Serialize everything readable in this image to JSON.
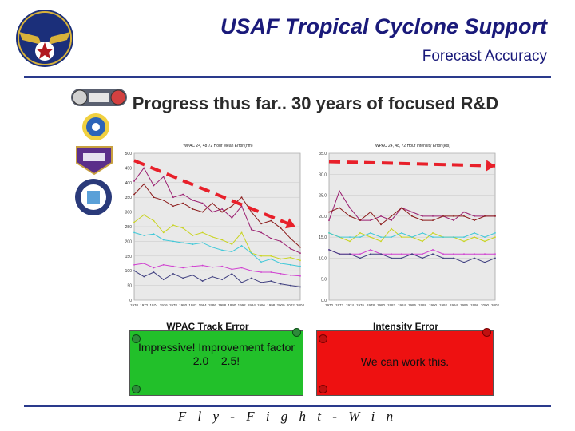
{
  "header": {
    "title": "USAF Tropical Cyclone Support",
    "subtitle": "Forecast Accuracy"
  },
  "panel": {
    "heading": "Progress thus far.. 30 years of focused R&D"
  },
  "notes": {
    "track": "Impressive! Improvement factor 2.0 – 2.5!",
    "intensity": "We can work this."
  },
  "footer": {
    "text": "F l y - F i g h t - W i n"
  },
  "colors": {
    "brand": "#1a1a7a",
    "rule": "#2a3a8c",
    "trend_arrow": "#e8202a",
    "track_note_bg": "#22c02a",
    "intensity_note_bg": "#ee1111"
  },
  "icons": [
    "usaf-wings-icon",
    "partner-seal-1-icon",
    "partner-seal-2-icon",
    "partner-seal-3-icon",
    "partner-seal-4-icon"
  ],
  "chart_data": [
    {
      "type": "line",
      "title": "WPAC 24, 48 72 Hour Mean Error (nm)",
      "caption": "WPAC Track Error",
      "ylim": [
        0,
        500
      ],
      "y_ticks": [
        "0",
        "50",
        "100",
        "150",
        "200",
        "250",
        "300",
        "350",
        "400",
        "450",
        "500"
      ],
      "x_ticks": [
        "1970",
        "1972",
        "1974",
        "1976",
        "1978",
        "1980",
        "1982",
        "1984",
        "1986",
        "1988",
        "1990",
        "1992",
        "1994",
        "1996",
        "1998",
        "2000",
        "2002",
        "2004"
      ],
      "x": [
        1970,
        1972,
        1974,
        1976,
        1978,
        1980,
        1982,
        1984,
        1986,
        1988,
        1990,
        1992,
        1994,
        1996,
        1998,
        2000,
        2002,
        2004
      ],
      "series": [
        {
          "values": [
            405,
            450,
            390,
            420,
            350,
            360,
            340,
            330,
            300,
            310,
            280,
            320,
            240,
            230,
            210,
            200,
            175,
            160
          ],
          "color": "#9a1e70"
        },
        {
          "values": [
            360,
            395,
            350,
            340,
            320,
            330,
            310,
            300,
            330,
            300,
            320,
            350,
            300,
            260,
            270,
            245,
            210,
            180
          ],
          "color": "#8b1a1a"
        },
        {
          "values": [
            265,
            290,
            270,
            230,
            255,
            245,
            220,
            230,
            215,
            205,
            190,
            230,
            160,
            150,
            150,
            140,
            145,
            135
          ],
          "color": "#c9d420"
        },
        {
          "values": [
            230,
            220,
            225,
            205,
            200,
            195,
            190,
            195,
            180,
            170,
            165,
            185,
            160,
            130,
            140,
            125,
            120,
            115
          ],
          "color": "#40c8d8"
        },
        {
          "values": [
            120,
            125,
            110,
            120,
            115,
            110,
            115,
            118,
            112,
            115,
            105,
            110,
            100,
            95,
            95,
            90,
            85,
            82
          ],
          "color": "#d040d0"
        },
        {
          "values": [
            100,
            80,
            95,
            70,
            90,
            75,
            85,
            65,
            80,
            70,
            90,
            60,
            75,
            60,
            65,
            55,
            50,
            45
          ],
          "color": "#404080"
        }
      ],
      "trend": {
        "from": [
          1970,
          475
        ],
        "to": [
          2003,
          250
        ]
      }
    },
    {
      "type": "line",
      "title": "WPAC 24, 48, 72 Hour Intensity Error (kts)",
      "caption": "Intensity Error",
      "ylim": [
        0,
        35
      ],
      "y_ticks": [
        "0.0",
        "5.0",
        "10.0",
        "15.0",
        "20.0",
        "25.0",
        "30.0",
        "35.0"
      ],
      "x_ticks": [
        "1970",
        "1972",
        "1974",
        "1976",
        "1978",
        "1980",
        "1982",
        "1984",
        "1986",
        "1988",
        "1990",
        "1992",
        "1994",
        "1996",
        "1998",
        "2000",
        "2002"
      ],
      "x": [
        1970,
        1972,
        1974,
        1976,
        1978,
        1980,
        1982,
        1984,
        1986,
        1988,
        1990,
        1992,
        1994,
        1996,
        1998,
        2000,
        2002
      ],
      "series": [
        {
          "values": [
            19,
            26,
            22,
            19,
            19,
            20,
            19,
            22,
            21,
            20,
            20,
            20,
            19,
            21,
            20,
            20,
            20
          ],
          "color": "#9a1e70"
        },
        {
          "values": [
            21,
            22,
            20,
            19,
            21,
            18,
            20,
            22,
            20,
            19,
            19,
            20,
            20,
            20,
            19,
            20,
            20
          ],
          "color": "#8b1a1a"
        },
        {
          "values": [
            16,
            15,
            14,
            16,
            15,
            14,
            17,
            15,
            15,
            14,
            16,
            15,
            15,
            14,
            15,
            14,
            15
          ],
          "color": "#c9d420"
        },
        {
          "values": [
            16,
            15,
            15,
            15,
            16,
            15,
            15,
            16,
            15,
            16,
            15,
            15,
            15,
            15,
            16,
            15,
            16
          ],
          "color": "#40c8d8"
        },
        {
          "values": [
            12,
            11,
            11,
            11,
            12,
            11,
            11,
            11,
            11,
            11,
            12,
            11,
            11,
            11,
            11,
            11,
            11
          ],
          "color": "#d040d0"
        },
        {
          "values": [
            12,
            11,
            11,
            10,
            11,
            11,
            10,
            10,
            11,
            10,
            11,
            10,
            10,
            9,
            10,
            9,
            10
          ],
          "color": "#404080"
        }
      ],
      "trend": {
        "from": [
          1970,
          33
        ],
        "to": [
          2002,
          32
        ]
      }
    }
  ]
}
